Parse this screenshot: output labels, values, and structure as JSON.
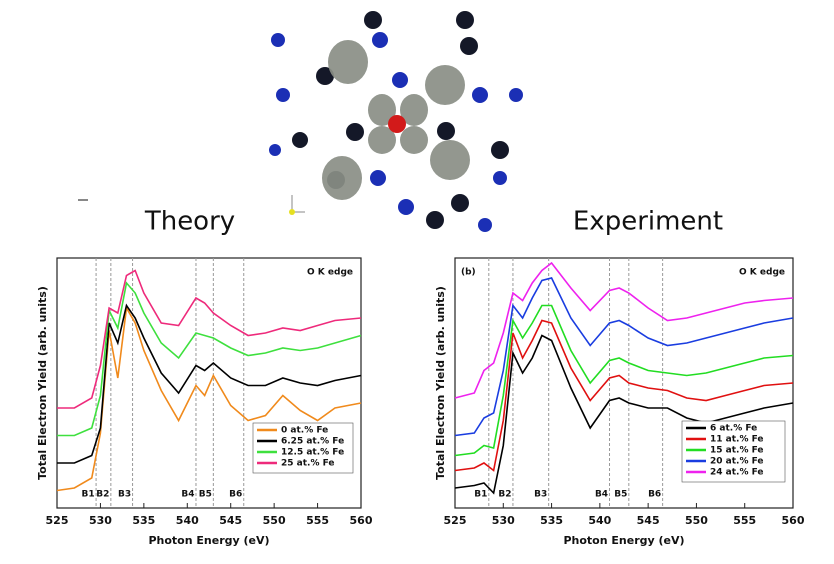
{
  "chart_data": [
    {
      "type": "line",
      "title": "Theory",
      "annotation": "O K edge",
      "x_label": "Photon Energy (eV)",
      "y_label": "Total Electron Yield (arb. units)",
      "xlim": [
        525,
        560
      ],
      "xticks": [
        525,
        530,
        535,
        540,
        545,
        550,
        555,
        560
      ],
      "ylim": [
        0,
        10
      ],
      "x": [
        525,
        527,
        529,
        530,
        531,
        532,
        533,
        534,
        535,
        537,
        539,
        541,
        542,
        543,
        545,
        547,
        549,
        551,
        553,
        555,
        557,
        560
      ],
      "series": [
        {
          "name": "0 at.% Fe",
          "color": "#f08a1c",
          "values": [
            0.7,
            0.8,
            1.2,
            3.0,
            7.1,
            5.2,
            8.0,
            7.4,
            6.3,
            4.7,
            3.5,
            4.9,
            4.5,
            5.3,
            4.1,
            3.5,
            3.7,
            4.5,
            3.9,
            3.5,
            4.0,
            4.2
          ]
        },
        {
          "name": "6.25 at.% Fe",
          "color": "#000000",
          "values": [
            1.8,
            1.8,
            2.1,
            3.2,
            7.4,
            6.6,
            8.1,
            7.6,
            6.8,
            5.4,
            4.6,
            5.7,
            5.5,
            5.8,
            5.2,
            4.9,
            4.9,
            5.2,
            5.0,
            4.9,
            5.1,
            5.3
          ]
        },
        {
          "name": "12.5 at.% Fe",
          "color": "#3ee03e",
          "values": [
            2.9,
            2.9,
            3.2,
            4.5,
            7.9,
            7.2,
            9.0,
            8.6,
            7.8,
            6.6,
            6.0,
            7.0,
            6.9,
            6.8,
            6.4,
            6.1,
            6.2,
            6.4,
            6.3,
            6.4,
            6.6,
            6.9
          ]
        },
        {
          "name": "25 at.% Fe",
          "color": "#ee2a7b",
          "values": [
            4.0,
            4.0,
            4.4,
            5.7,
            8.0,
            7.8,
            9.3,
            9.5,
            8.6,
            7.4,
            7.3,
            8.4,
            8.2,
            7.8,
            7.3,
            6.9,
            7.0,
            7.2,
            7.1,
            7.3,
            7.5,
            7.6
          ]
        }
      ],
      "markers": [
        {
          "x": 529.5,
          "label": "B1"
        },
        {
          "x": 531.2,
          "label": "B2"
        },
        {
          "x": 533.7,
          "label": "B3"
        },
        {
          "x": 541,
          "label": "B4"
        },
        {
          "x": 543,
          "label": "B5"
        },
        {
          "x": 546.5,
          "label": "B6"
        }
      ]
    },
    {
      "type": "line",
      "title": "Experiment",
      "annotation": "O K edge",
      "panel_label": "(b)",
      "x_label": "Photon Energy (eV)",
      "y_label": "Total Electron Yield (arb. units)",
      "xlim": [
        525,
        560
      ],
      "xticks": [
        525,
        530,
        535,
        540,
        545,
        550,
        555,
        560
      ],
      "ylim": [
        0,
        10
      ],
      "x": [
        525,
        527,
        528,
        529,
        530,
        531,
        532,
        533,
        534,
        535,
        537,
        539,
        541,
        542,
        543,
        545,
        547,
        549,
        551,
        553,
        555,
        557,
        560
      ],
      "series": [
        {
          "name": "6 at.% Fe",
          "color": "#000000",
          "values": [
            0.8,
            0.9,
            1.0,
            0.6,
            2.5,
            6.2,
            5.4,
            6.0,
            6.9,
            6.7,
            4.8,
            3.2,
            4.3,
            4.4,
            4.2,
            4.0,
            4.0,
            3.6,
            3.4,
            3.6,
            3.8,
            4.0,
            4.2
          ]
        },
        {
          "name": "11 at.% Fe",
          "color": "#e01010",
          "values": [
            1.5,
            1.6,
            1.8,
            1.5,
            3.5,
            7.0,
            6.0,
            6.7,
            7.5,
            7.4,
            5.6,
            4.3,
            5.2,
            5.3,
            5.0,
            4.8,
            4.7,
            4.4,
            4.3,
            4.5,
            4.7,
            4.9,
            5.0
          ]
        },
        {
          "name": "15 at.% Fe",
          "color": "#22dd22",
          "values": [
            2.1,
            2.2,
            2.5,
            2.4,
            4.5,
            7.5,
            6.8,
            7.4,
            8.1,
            8.1,
            6.3,
            5.0,
            5.9,
            6.0,
            5.8,
            5.5,
            5.4,
            5.3,
            5.4,
            5.6,
            5.8,
            6.0,
            6.1
          ]
        },
        {
          "name": "20 at.% Fe",
          "color": "#1a3de0",
          "values": [
            2.9,
            3.0,
            3.6,
            3.8,
            5.5,
            8.1,
            7.6,
            8.4,
            9.1,
            9.2,
            7.6,
            6.5,
            7.4,
            7.5,
            7.3,
            6.8,
            6.5,
            6.6,
            6.8,
            7.0,
            7.2,
            7.4,
            7.6
          ]
        },
        {
          "name": "24 at.% Fe",
          "color": "#ee22ee",
          "values": [
            4.4,
            4.6,
            5.5,
            5.8,
            7.0,
            8.6,
            8.3,
            9.0,
            9.5,
            9.8,
            8.8,
            7.9,
            8.7,
            8.8,
            8.6,
            8.0,
            7.5,
            7.6,
            7.8,
            8.0,
            8.2,
            8.3,
            8.4
          ]
        }
      ],
      "markers": [
        {
          "x": 528.5,
          "label": "B1"
        },
        {
          "x": 531,
          "label": "B2"
        },
        {
          "x": 534.7,
          "label": "B3"
        },
        {
          "x": 541,
          "label": "B4"
        },
        {
          "x": 543,
          "label": "B5"
        },
        {
          "x": 546.5,
          "label": "B6"
        }
      ]
    }
  ]
}
